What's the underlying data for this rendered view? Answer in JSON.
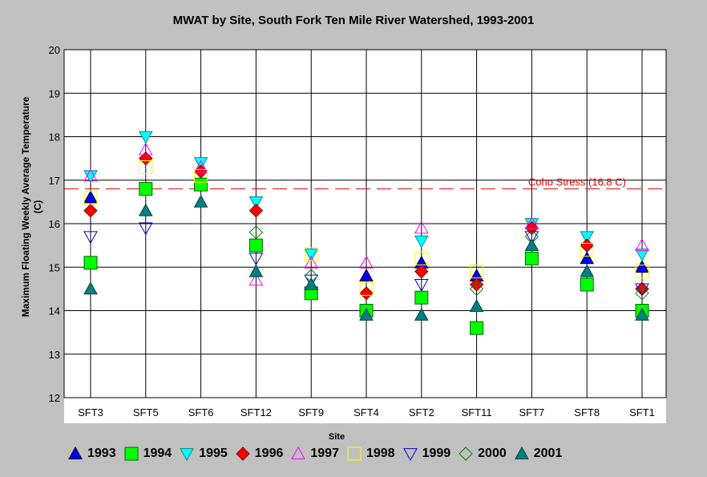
{
  "chart_data": {
    "type": "scatter",
    "title": "MWAT by Site, South Fork Ten Mile River Watershed, 1993-2001",
    "xlabel": "Site",
    "ylabel": "Maximum Floating Weekly Average Temperature\n(C)",
    "ylim": [
      12,
      20
    ],
    "yticks": [
      "12",
      "13",
      "14",
      "15",
      "16",
      "17",
      "18",
      "19",
      "20"
    ],
    "grid": true,
    "legend_position": "bottom",
    "categories": [
      "SFT3",
      "SFT5",
      "SFT6",
      "SFT12",
      "SFT9",
      "SFT4",
      "SFT2",
      "SFT11",
      "SFT7",
      "SFT8",
      "SFT1"
    ],
    "reference_line": {
      "value": 16.8,
      "label": "Coho Stress (16.8 C)",
      "color": "#e00000"
    },
    "series": [
      {
        "name": "1993",
        "marker": "triangle-up",
        "fill": "#0000ff",
        "stroke": "#000000",
        "values": [
          16.6,
          null,
          null,
          null,
          null,
          14.8,
          15.1,
          14.8,
          null,
          15.2,
          15.0
        ]
      },
      {
        "name": "1994",
        "marker": "square",
        "fill": "#00ff00",
        "stroke": "#006400",
        "values": [
          15.1,
          16.8,
          16.9,
          15.5,
          14.4,
          14.0,
          14.3,
          13.6,
          15.2,
          14.6,
          14.0
        ]
      },
      {
        "name": "1995",
        "marker": "triangle-down",
        "fill": "#00ffff",
        "stroke": "#008b8b",
        "values": [
          17.1,
          18.0,
          17.4,
          16.5,
          15.3,
          null,
          15.6,
          null,
          16.0,
          15.7,
          15.3
        ]
      },
      {
        "name": "1996",
        "marker": "diamond",
        "fill": "#ff0000",
        "stroke": "#800000",
        "values": [
          16.3,
          17.5,
          17.2,
          16.3,
          null,
          14.4,
          14.9,
          14.6,
          15.9,
          15.5,
          14.5
        ]
      },
      {
        "name": "1997",
        "marker": "triangle-up-open",
        "fill": "none",
        "stroke": "#ff00ff",
        "values": [
          17.1,
          17.7,
          17.3,
          14.7,
          15.1,
          15.1,
          15.9,
          null,
          16.0,
          null,
          15.5
        ]
      },
      {
        "name": "1998",
        "marker": "square-open",
        "fill": "none",
        "stroke": "#ffff00",
        "values": [
          16.6,
          17.3,
          17.1,
          null,
          15.3,
          14.5,
          15.2,
          14.9,
          null,
          15.4,
          14.9
        ]
      },
      {
        "name": "1999",
        "marker": "triangle-down-open",
        "fill": "none",
        "stroke": "#0000cc",
        "values": [
          15.7,
          15.9,
          null,
          15.2,
          14.7,
          null,
          14.6,
          null,
          15.7,
          null,
          14.5
        ]
      },
      {
        "name": "2000",
        "marker": "diamond-open",
        "fill": "none",
        "stroke": "#008000",
        "values": [
          null,
          null,
          null,
          15.8,
          14.8,
          null,
          null,
          14.5,
          15.7,
          null,
          14.4
        ]
      },
      {
        "name": "2001",
        "marker": "triangle-up",
        "fill": "#008080",
        "stroke": "#004040",
        "values": [
          14.5,
          16.3,
          16.5,
          14.9,
          14.6,
          13.9,
          13.9,
          14.1,
          15.5,
          14.9,
          13.9
        ]
      }
    ]
  }
}
